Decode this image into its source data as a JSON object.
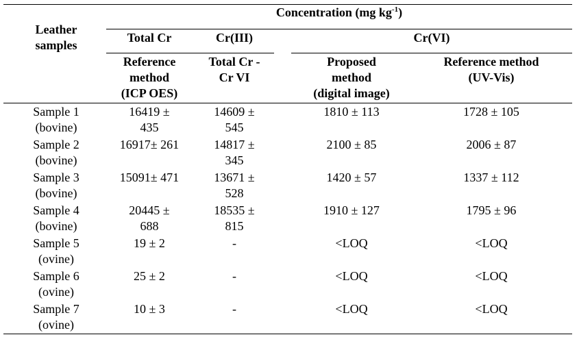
{
  "header": {
    "title": "Concentration (mg kg",
    "title_sup": "-1",
    "title_end": ")",
    "row_header": [
      "Leather",
      "samples"
    ],
    "total_cr": "Total Cr",
    "cr3": "Cr(III)",
    "cr6": "Cr(VI)",
    "sub": [
      [
        "Reference",
        "method",
        "(ICP OES)"
      ],
      [
        "Total Cr -",
        "Cr VI"
      ],
      [
        "Proposed",
        "method",
        "(digital image)"
      ],
      [
        "Reference method",
        "(UV-Vis)"
      ]
    ]
  },
  "table": {
    "rows": [
      [
        [
          "Sample 1",
          "(bovine)"
        ],
        [
          "16419 ±",
          "435"
        ],
        [
          "14609 ±",
          "545"
        ],
        [
          "1810 ± 113"
        ],
        [
          "1728 ± 105"
        ]
      ],
      [
        [
          "Sample 2",
          "(bovine)"
        ],
        [
          "16917± 261"
        ],
        [
          "14817 ±",
          "345"
        ],
        [
          "2100 ± 85"
        ],
        [
          "2006 ± 87"
        ]
      ],
      [
        [
          "Sample 3",
          "(bovine)"
        ],
        [
          "15091± 471"
        ],
        [
          "13671 ±",
          "528"
        ],
        [
          "1420 ± 57"
        ],
        [
          "1337 ± 112"
        ]
      ],
      [
        [
          "Sample 4",
          "(bovine)"
        ],
        [
          "20445 ±",
          "688"
        ],
        [
          "18535 ±",
          "815"
        ],
        [
          "1910 ± 127"
        ],
        [
          "1795 ± 96"
        ]
      ],
      [
        [
          "Sample 5",
          "(ovine)"
        ],
        [
          "19 ± 2"
        ],
        [
          "-"
        ],
        [
          "<LOQ"
        ],
        [
          "<LOQ"
        ]
      ],
      [
        [
          "Sample 6",
          "(ovine)"
        ],
        [
          "25 ± 2"
        ],
        [
          "-"
        ],
        [
          "<LOQ"
        ],
        [
          "<LOQ"
        ]
      ],
      [
        [
          "Sample 7",
          "(ovine)"
        ],
        [
          "10 ± 3"
        ],
        [
          "-"
        ],
        [
          "<LOQ"
        ],
        [
          "<LOQ"
        ]
      ]
    ]
  }
}
